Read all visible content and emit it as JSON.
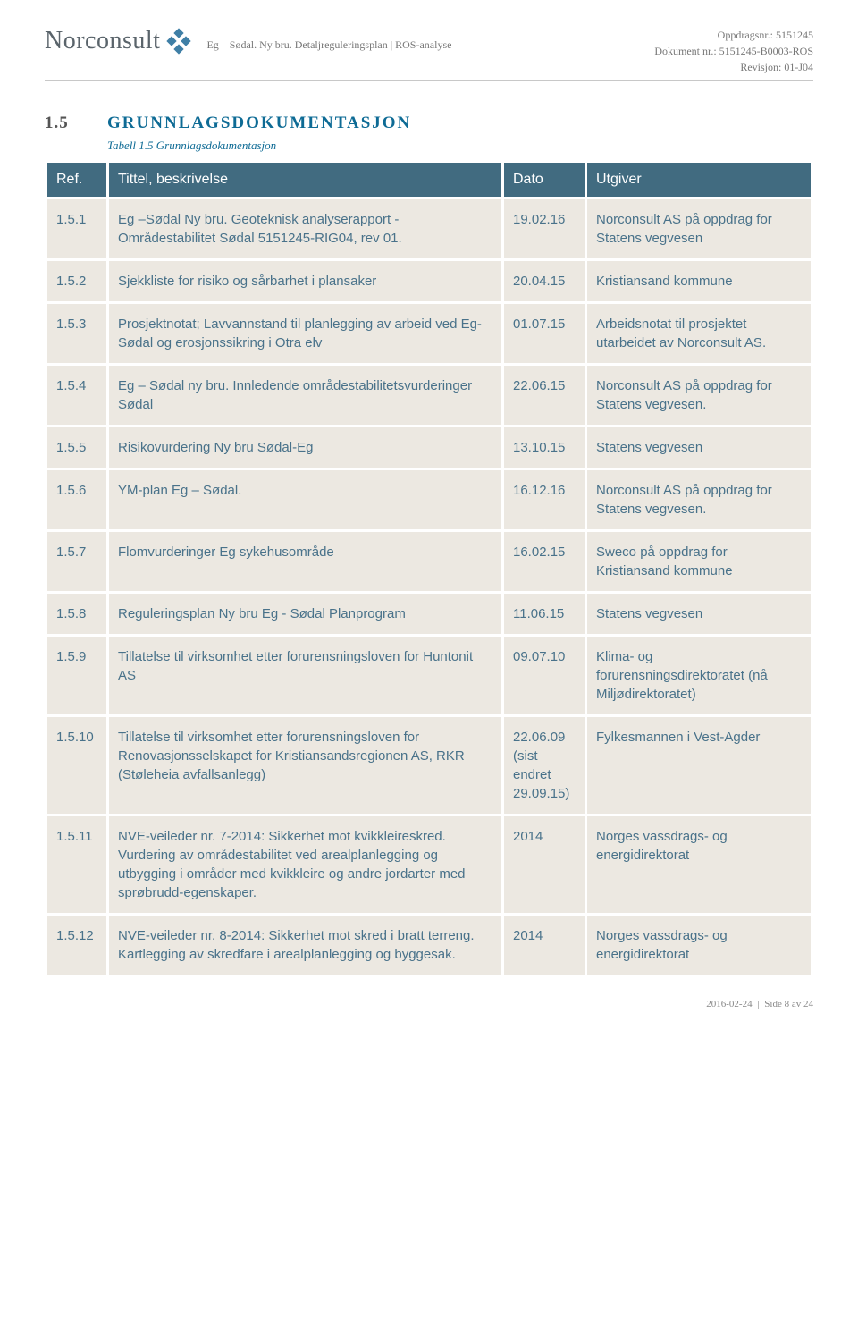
{
  "header": {
    "logo_text": "Norconsult",
    "subheader": "Eg – Sødal. Ny bru. Detaljreguleringsplan  |  ROS-analyse",
    "right_lines": {
      "l1_label": "Oppdragsnr.:",
      "l1_value": "5151245",
      "l2_label": "Dokument nr.:",
      "l2_value": "5151245-B0003-ROS",
      "l3_label": "Revisjon:",
      "l3_value": "01-J04"
    },
    "logo_color": "#3f7fa6"
  },
  "section": {
    "number": "1.5",
    "title": "GRUNNLAGSDOKUMENTASJON",
    "caption": "Tabell 1.5 Grunnlagsdokumentasjon"
  },
  "table": {
    "header_bg": "#416b80",
    "header_fg": "#ffffff",
    "cell_bg": "#ece8e1",
    "cell_fg": "#49728a",
    "columns": {
      "ref": "Ref.",
      "title": "Tittel, beskrivelse",
      "dato": "Dato",
      "utgiver": "Utgiver"
    },
    "rows": [
      {
        "ref": "1.5.1",
        "title": "Eg –Sødal Ny bru. Geoteknisk analyserapport - Områdestabilitet Sødal 5151245-RIG04, rev 01.",
        "dato": "19.02.16",
        "utgiver": "Norconsult AS på oppdrag for Statens vegvesen"
      },
      {
        "ref": "1.5.2",
        "title": "Sjekkliste for risiko og sårbarhet i plansaker",
        "dato": "20.04.15",
        "utgiver": "Kristiansand kommune"
      },
      {
        "ref": "1.5.3",
        "title": "Prosjektnotat; Lavvannstand til planlegging av arbeid ved Eg-Sødal og erosjonssikring i Otra elv",
        "dato": "01.07.15",
        "utgiver": "Arbeidsnotat til prosjektet utarbeidet av Norconsult AS."
      },
      {
        "ref": "1.5.4",
        "title": "Eg – Sødal ny bru. Innledende områdestabilitetsvurderinger Sødal",
        "dato": "22.06.15",
        "utgiver": "Norconsult AS på oppdrag for Statens vegvesen."
      },
      {
        "ref": "1.5.5",
        "title": "Risikovurdering Ny bru Sødal-Eg",
        "dato": "13.10.15",
        "utgiver": "Statens vegvesen"
      },
      {
        "ref": "1.5.6",
        "title": "YM-plan Eg – Sødal.",
        "dato": "16.12.16",
        "utgiver": "Norconsult AS på oppdrag for Statens vegvesen."
      },
      {
        "ref": "1.5.7",
        "title": "Flomvurderinger Eg sykehusområde",
        "dato": "16.02.15",
        "utgiver": "Sweco på oppdrag for Kristiansand kommune"
      },
      {
        "ref": "1.5.8",
        "title": "Reguleringsplan Ny bru Eg - Sødal Planprogram",
        "dato": "11.06.15",
        "utgiver": "Statens vegvesen"
      },
      {
        "ref": "1.5.9",
        "title": "Tillatelse til virksomhet etter forurensningsloven for Huntonit AS",
        "dato": "09.07.10",
        "utgiver": "Klima- og forurensningsdirektoratet (nå Miljødirektoratet)"
      },
      {
        "ref": "1.5.10",
        "title": "Tillatelse til virksomhet etter forurensningsloven for Renovasjonsselskapet for Kristiansandsregionen AS, RKR (Støleheia avfallsanlegg)",
        "dato": "22.06.09\n(sist endret 29.09.15)",
        "utgiver": "Fylkesmannen i Vest-Agder"
      },
      {
        "ref": "1.5.11",
        "title": "NVE-veileder nr. 7-2014: Sikkerhet mot kvikkleireskred. Vurdering av områdestabilitet ved arealplanlegging og utbygging i områder med kvikkleire og andre jordarter med sprøbrudd-egenskaper.",
        "dato": "2014",
        "utgiver": "Norges vassdrags- og energidirektorat"
      },
      {
        "ref": "1.5.12",
        "title": "NVE-veileder nr. 8-2014: Sikkerhet mot skred i bratt terreng. Kartlegging av skredfare i arealplanlegging og byggesak.",
        "dato": "2014",
        "utgiver": "Norges vassdrags- og energidirektorat"
      }
    ]
  },
  "footer": {
    "date": "2016-02-24",
    "page_label": "Side",
    "page_num": "8",
    "page_of": "av",
    "page_total": "24"
  }
}
